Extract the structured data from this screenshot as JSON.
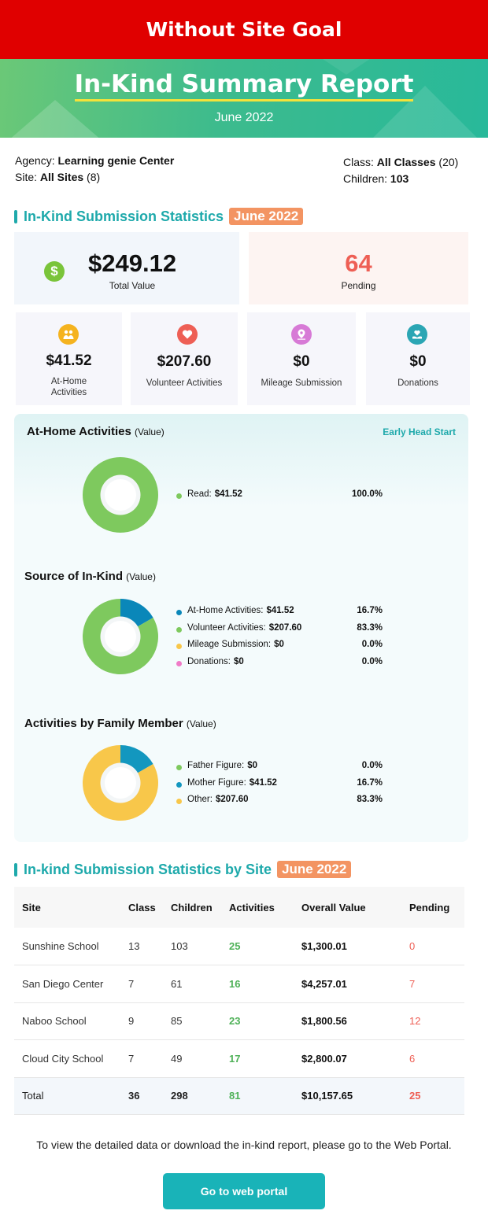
{
  "banner": {
    "text": "Without Site Goal"
  },
  "header": {
    "title": "In-Kind Summary Report",
    "subtitle": "June 2022"
  },
  "meta": {
    "agency_label": "Agency:",
    "agency": "Learning genie Center",
    "site_label": "Site:",
    "site": "All Sites",
    "site_count": "(8)",
    "class_label": "Class:",
    "class": "All Classes",
    "class_count": "(20)",
    "children_label": "Children:",
    "children": "103"
  },
  "stats": {
    "title": "In-Kind Submission Statistics",
    "tag": "June 2022",
    "total_value": "$249.12",
    "total_label": "Total Value",
    "pending_value": "64",
    "pending_label": "Pending",
    "cards": [
      {
        "value": "$41.52",
        "label": "At-Home Activities",
        "icon": "family-icon",
        "color": "#f5b31f"
      },
      {
        "value": "$207.60",
        "label": "Volunteer Activities",
        "icon": "handshake-heart-icon",
        "color": "#ee5f55"
      },
      {
        "value": "$0",
        "label": "Mileage Submission",
        "icon": "location-pin-icon",
        "color": "#d77ad6"
      },
      {
        "value": "$0",
        "label": "Donations",
        "icon": "heart-hand-icon",
        "color": "#2ba6b4"
      }
    ]
  },
  "charts_panel": {
    "program": "Early Head Start",
    "value_note": "(Value)"
  },
  "chart_data": [
    {
      "type": "pie",
      "title": "At-Home Activities",
      "categories": [
        "Read:"
      ],
      "values": [
        41.52
      ],
      "value_labels": [
        "$41.52"
      ],
      "percents": [
        "100.0%"
      ],
      "colors": [
        "#7ec95e"
      ]
    },
    {
      "type": "pie",
      "title": "Source of In-Kind",
      "categories": [
        "At-Home Activities:",
        "Volunteer Activities:",
        "Mileage Submission:",
        "Donations:"
      ],
      "values": [
        41.52,
        207.6,
        0,
        0
      ],
      "value_labels": [
        "$41.52",
        "$207.60",
        "$0",
        "$0"
      ],
      "percents": [
        "16.7%",
        "83.3%",
        "0.0%",
        "0.0%"
      ],
      "colors": [
        "#0a87b9",
        "#7ec95e",
        "#f8c74a",
        "#f07bc8"
      ]
    },
    {
      "type": "pie",
      "title": "Activities by Family Member",
      "categories": [
        "Father Figure:",
        "Mother Figure:",
        "Other:"
      ],
      "values": [
        0,
        41.52,
        207.6
      ],
      "value_labels": [
        "$0",
        "$41.52",
        "$207.60"
      ],
      "percents": [
        "0.0%",
        "16.7%",
        "83.3%"
      ],
      "colors": [
        "#7ec95e",
        "#1397bf",
        "#f8c74a"
      ]
    }
  ],
  "site_stats": {
    "title": "In-kind Submission Statistics by Site",
    "tag": "June 2022",
    "headers": [
      "Site",
      "Class",
      "Children",
      "Activities",
      "Overall Value",
      "Pending"
    ],
    "rows": [
      [
        "Sunshine School",
        "13",
        "103",
        "25",
        "$1,300.01",
        "0"
      ],
      [
        "San Diego Center",
        "7",
        "61",
        "16",
        "$4,257.01",
        "7"
      ],
      [
        "Naboo School",
        "9",
        "85",
        "23",
        "$1,800.56",
        "12"
      ],
      [
        "Cloud City School",
        "7",
        "49",
        "17",
        "$2,800.07",
        "6"
      ],
      [
        "Total",
        "36",
        "298",
        "81",
        "$10,157.65",
        "25"
      ]
    ]
  },
  "footer": {
    "text": "To view the detailed data or download the in-kind report, please go to the Web Portal.",
    "button": "Go to web portal"
  }
}
